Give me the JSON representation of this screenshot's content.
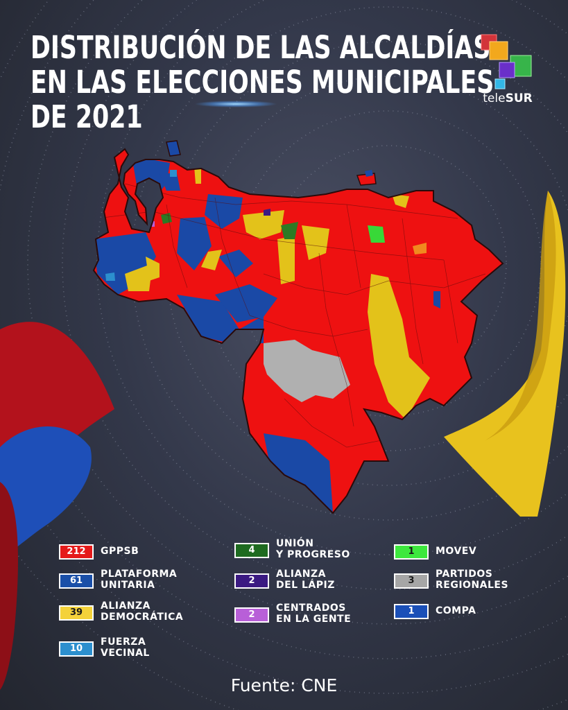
{
  "title": {
    "line1": "DISTRIBUCIÓN DE LAS ALCALDÍAS",
    "line2": "EN LAS ELECCIONES MUNICIPALES",
    "line3": "DE 2021"
  },
  "brand": {
    "logo_text_a": "tele",
    "logo_text_b": "SUR"
  },
  "legend": [
    {
      "count": "212",
      "line1": "GPPSB",
      "line2": "",
      "color": "#e51a1a",
      "text_color": "#ffffff"
    },
    {
      "count": "61",
      "line1": "PLATAFORMA",
      "line2": "UNITARIA",
      "color": "#1a4fa8",
      "text_color": "#ffffff"
    },
    {
      "count": "39",
      "line1": "ALIANZA",
      "line2": "DEMOCRÁTICA",
      "color": "#f4d23a",
      "text_color": "#1a1a1a"
    },
    {
      "count": "10",
      "line1": "FUERZA",
      "line2": "VECINAL",
      "color": "#2c8fce",
      "text_color": "#ffffff"
    },
    {
      "count": "4",
      "line1": "UNIÓN",
      "line2": "Y PROGRESO",
      "color": "#1e6b20",
      "text_color": "#ffffff"
    },
    {
      "count": "2",
      "line1": "ALIANZA",
      "line2": "DEL LÁPIZ",
      "color": "#3b1a82",
      "text_color": "#ffffff"
    },
    {
      "count": "2",
      "line1": "CENTRADOS",
      "line2": "EN LA GENTE",
      "color": "#b85fd8",
      "text_color": "#ffffff"
    },
    {
      "count": "1",
      "line1": "MOVEV",
      "line2": "",
      "color": "#3de83d",
      "text_color": "#1a1a1a"
    },
    {
      "count": "3",
      "line1": "PARTIDOS",
      "line2": "REGIONALES",
      "color": "#a6a6a6",
      "text_color": "#1a1a1a"
    },
    {
      "count": "1",
      "line1": "COMPA",
      "line2": "",
      "color": "#1a4fb8",
      "text_color": "#ffffff"
    }
  ],
  "source": "Fuente: CNE",
  "map_colors": {
    "gppsb": "#ee1111",
    "plataforma": "#1a49a6",
    "alianza_democratica": "#e3c21a",
    "union_progreso": "#2d7a24",
    "regionales": "#b0b0b0",
    "movev": "#38d838",
    "other_orange": "#f08a1f",
    "border": "#2a0a0a"
  }
}
